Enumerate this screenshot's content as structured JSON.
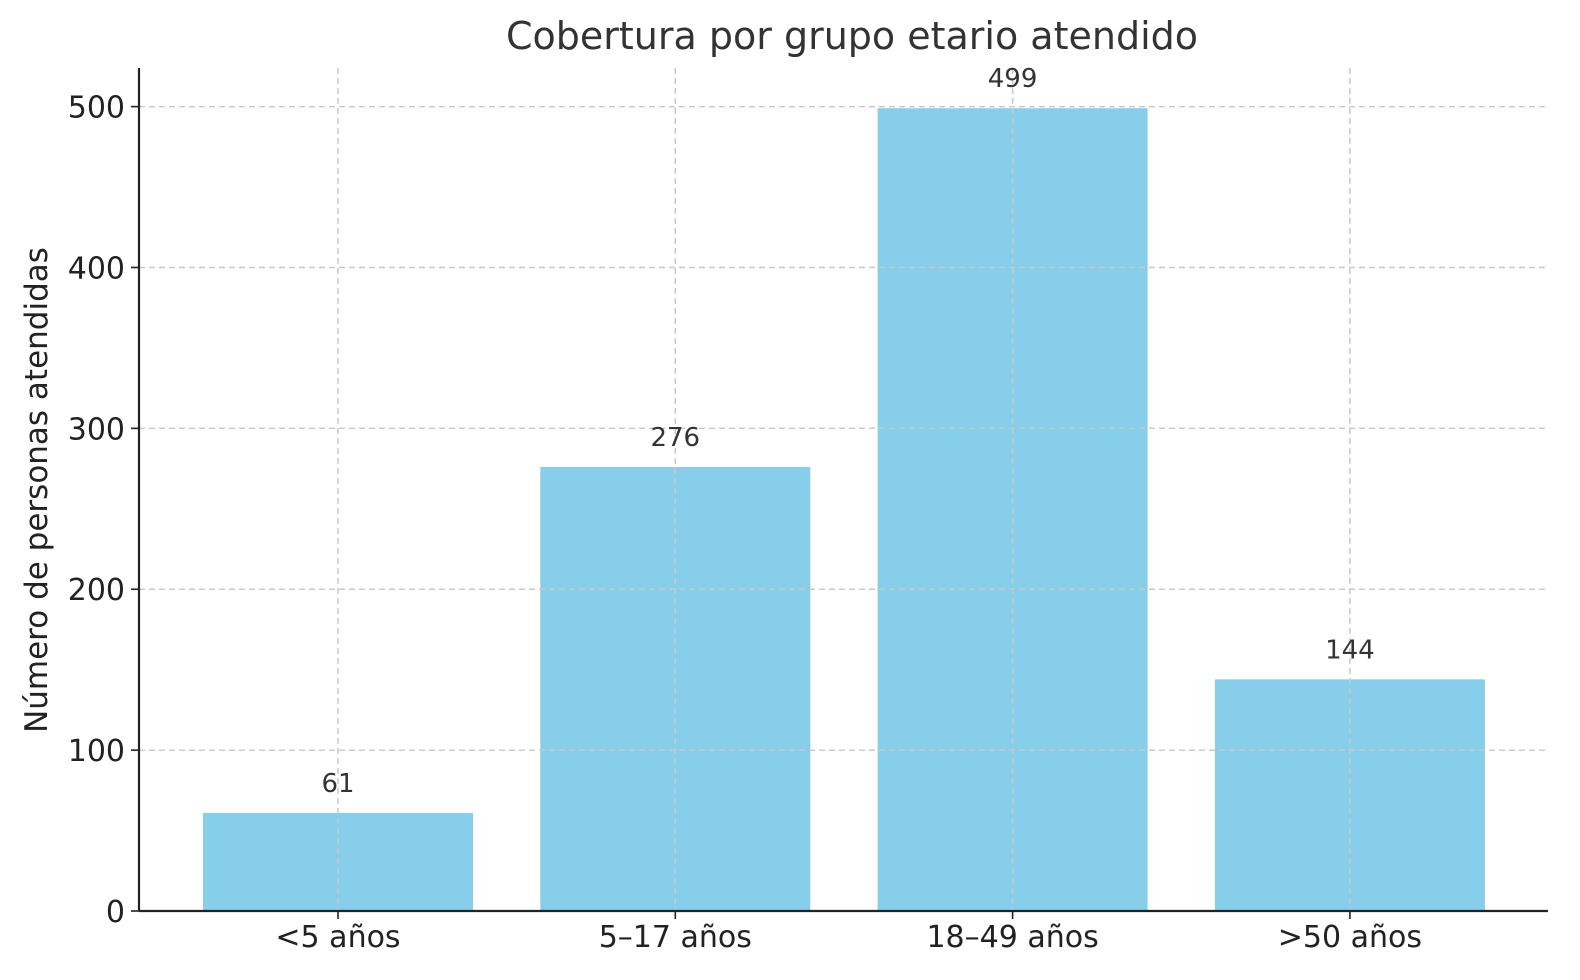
{
  "chart_data": {
    "type": "bar",
    "title": "Cobertura por grupo etario atendido",
    "xlabel": "",
    "ylabel": "Número de personas atendidas",
    "categories": [
      "<5 años",
      "5–17 años",
      "18–49 años",
      ">50 años"
    ],
    "values": [
      61,
      276,
      499,
      144
    ],
    "data_labels": [
      "61",
      "276",
      "499",
      "144"
    ],
    "yticks": [
      0,
      100,
      200,
      300,
      400,
      500
    ],
    "ylim": [
      0,
      524
    ],
    "grid": true,
    "bar_color": "#87CEEB"
  }
}
